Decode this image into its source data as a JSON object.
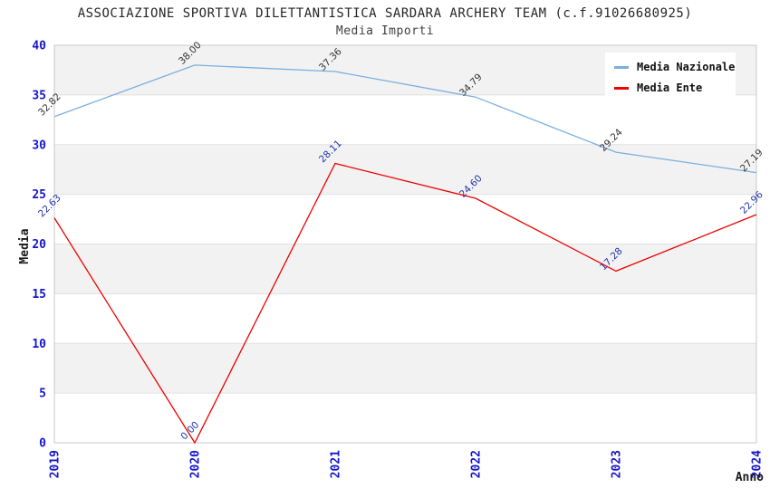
{
  "header": {
    "title": "ASSOCIAZIONE SPORTIVA DILETTANTISTICA SARDARA ARCHERY TEAM (c.f.91026680925)",
    "subtitle": "Media Importi"
  },
  "colors": {
    "nazionale_line": "#79afdf",
    "ente_line": "#ee0000",
    "axis_tick_label": "#1515cc",
    "nazionale_data_label": "#333333",
    "ente_data_label": "#2233aa",
    "band_gray": "#f2f2f2",
    "grid_line": "#e0e0e0",
    "plot_border": "#c8c8c8",
    "axis_title": "#1a1a1a"
  },
  "chart_data": {
    "type": "line",
    "title": "ASSOCIAZIONE SPORTIVA DILETTANTISTICA SARDARA ARCHERY TEAM (c.f.91026680925)",
    "subtitle": "Media Importi",
    "xlabel": "Anno",
    "ylabel": "Media",
    "categories": [
      "2019",
      "2020",
      "2021",
      "2022",
      "2023",
      "2024"
    ],
    "series": [
      {
        "name": "Media Nazionale",
        "color": "#79afdf",
        "label_color": "#333333",
        "values": [
          32.82,
          38.0,
          37.36,
          34.79,
          29.24,
          27.19
        ]
      },
      {
        "name": "Media Ente",
        "color": "#ee0000",
        "label_color": "#2233aa",
        "values": [
          22.63,
          0.0,
          28.11,
          24.6,
          17.28,
          22.96
        ]
      }
    ],
    "ylim": [
      0,
      40
    ],
    "ytick_step": 5,
    "yticks": [
      0,
      5,
      10,
      15,
      20,
      25,
      30,
      35,
      40
    ],
    "grid": true,
    "banded_background": true,
    "legend_position": "top-right",
    "data_label_decimals": 2
  },
  "legend": {
    "items": [
      {
        "label": "Media Nazionale",
        "color": "#79afdf"
      },
      {
        "label": "Media Ente",
        "color": "#ee0000"
      }
    ]
  }
}
